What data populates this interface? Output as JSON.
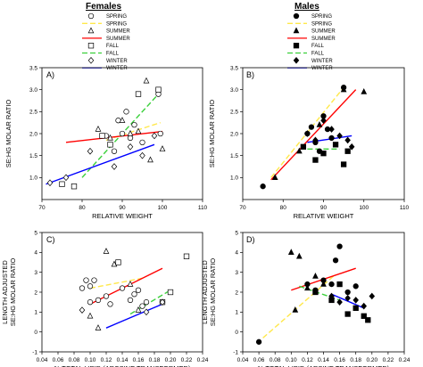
{
  "figure": {
    "females_header": "Females",
    "males_header": "Males"
  },
  "legend_entries": [
    "SPRING",
    "SPRING",
    "SUMMER",
    "SUMMER",
    "FALL",
    "FALL",
    "WINTER",
    "WINTER"
  ],
  "colors": {
    "spring_line": "#ffe84a",
    "summer_line": "#ff0000",
    "fall_line": "#3ad03a",
    "winter_line": "#0000ff",
    "marker": "#000000"
  },
  "chart_data": [
    {
      "panel_label": "A)",
      "type": "scatter",
      "xlabel": "RELATIVE WEIGHT",
      "ylabel": "SE:HG MOLAR RATIO",
      "xlim": [
        70,
        110
      ],
      "ylim": [
        0.5,
        3.5
      ],
      "xticks": [
        "70",
        "80",
        "90",
        "100",
        "110"
      ],
      "yticks": [
        "1.0",
        "1.5",
        "2.0",
        "2.5",
        "3.0",
        "3.5"
      ],
      "marker_fill": "open",
      "series": [
        {
          "name": "SPRING",
          "marker": "circle",
          "points": [
            [
              86,
              1.95
            ],
            [
              88,
              1.6
            ],
            [
              89,
              2.3
            ],
            [
              90,
              2.0
            ],
            [
              91,
              2.5
            ],
            [
              92,
              1.9
            ],
            [
              93,
              2.2
            ],
            [
              95,
              1.8
            ],
            [
              99,
              2.9
            ],
            [
              99.5,
              2.0
            ]
          ],
          "fit": [
            [
              86,
              1.85
            ],
            [
              99.5,
              2.25
            ]
          ]
        },
        {
          "name": "SUMMER",
          "marker": "triangle",
          "points": [
            [
              84,
              2.1
            ],
            [
              87,
              1.9
            ],
            [
              90,
              2.3
            ],
            [
              92,
              2.0
            ],
            [
              94,
              2.05
            ],
            [
              96,
              3.2
            ],
            [
              97,
              1.4
            ],
            [
              100,
              1.65
            ]
          ],
          "fit": [
            [
              76,
              1.8
            ],
            [
              100,
              2.05
            ]
          ]
        },
        {
          "name": "FALL",
          "marker": "square",
          "points": [
            [
              75,
              0.85
            ],
            [
              78,
              0.8
            ],
            [
              85,
              1.95
            ],
            [
              87,
              1.75
            ],
            [
              94,
              2.9
            ],
            [
              99,
              3.0
            ]
          ],
          "fit": [
            [
              80,
              1.0
            ],
            [
              99,
              2.9
            ]
          ]
        },
        {
          "name": "WINTER",
          "marker": "diamond",
          "points": [
            [
              72,
              0.88
            ],
            [
              76,
              1.0
            ],
            [
              82,
              1.6
            ],
            [
              88,
              1.25
            ],
            [
              92,
              1.7
            ],
            [
              95,
              1.5
            ],
            [
              98,
              1.95
            ]
          ],
          "fit": [
            [
              71,
              0.85
            ],
            [
              98,
              1.75
            ]
          ]
        }
      ]
    },
    {
      "panel_label": "B)",
      "type": "scatter",
      "xlabel": "RELATIVE WEIGHT",
      "ylabel": "SE:HG MOLAR RATIO",
      "xlim": [
        70,
        110
      ],
      "ylim": [
        0.5,
        3.5
      ],
      "xticks": [
        "70",
        "80",
        "90",
        "100",
        "110"
      ],
      "yticks": [
        "1.0",
        "1.5",
        "2.0",
        "2.5",
        "3.0",
        "3.5"
      ],
      "marker_fill": "filled",
      "series": [
        {
          "name": "SPRING",
          "marker": "circle",
          "points": [
            [
              75,
              0.8
            ],
            [
              86,
              2.0
            ],
            [
              87,
              2.15
            ],
            [
              88,
              1.8
            ],
            [
              89,
              1.6
            ],
            [
              90,
              2.4
            ],
            [
              91,
              2.1
            ],
            [
              92,
              1.9
            ],
            [
              95,
              3.05
            ]
          ],
          "fit": [
            [
              77,
              1.0
            ],
            [
              95,
              3.05
            ]
          ]
        },
        {
          "name": "SUMMER",
          "marker": "triangle",
          "points": [
            [
              78,
              1.0
            ],
            [
              84,
              1.6
            ],
            [
              89,
              2.2
            ],
            [
              95,
              3.0
            ],
            [
              100,
              2.95
            ]
          ],
          "fit": [
            [
              77,
              0.95
            ],
            [
              98,
              3.0
            ]
          ]
        },
        {
          "name": "FALL",
          "marker": "square",
          "points": [
            [
              85,
              1.7
            ],
            [
              88,
              1.4
            ],
            [
              90,
              1.55
            ],
            [
              93,
              1.75
            ],
            [
              95,
              1.3
            ],
            [
              96,
              1.6
            ]
          ],
          "fit": [
            [
              86,
              1.65
            ],
            [
              94,
              1.65
            ]
          ]
        },
        {
          "name": "WINTER",
          "marker": "diamond",
          "points": [
            [
              86,
              2.0
            ],
            [
              88,
              1.85
            ],
            [
              90,
              2.3
            ],
            [
              92,
              2.1
            ],
            [
              94,
              1.95
            ],
            [
              96,
              1.85
            ],
            [
              97,
              1.7
            ]
          ],
          "fit": [
            [
              86,
              1.8
            ],
            [
              97,
              1.95
            ]
          ]
        }
      ]
    },
    {
      "panel_label": "C)",
      "type": "scatter",
      "xlabel": "% TOTAL LIPID (ARCSINE TRANSFORMED)",
      "ylabel": "LENGTH ADJUSTED SE:HG MOLAR RATIO",
      "xlim": [
        0.04,
        0.24
      ],
      "ylim": [
        -1,
        5
      ],
      "xticks": [
        "0.04",
        "0.06",
        "0.08",
        "0.10",
        "0.12",
        "0.14",
        "0.16",
        "0.18",
        "0.20",
        "0.22",
        "0.24"
      ],
      "yticks": [
        "-1",
        "0",
        "1",
        "2",
        "3",
        "4",
        "5"
      ],
      "marker_fill": "open",
      "series": [
        {
          "name": "SPRING",
          "marker": "circle",
          "points": [
            [
              0.09,
              2.2
            ],
            [
              0.095,
              2.6
            ],
            [
              0.1,
              1.5
            ],
            [
              0.1,
              2.3
            ],
            [
              0.105,
              2.6
            ],
            [
              0.11,
              1.6
            ],
            [
              0.12,
              1.8
            ],
            [
              0.125,
              1.4
            ],
            [
              0.14,
              2.2
            ],
            [
              0.15,
              1.6
            ],
            [
              0.155,
              1.9
            ],
            [
              0.16,
              2.1
            ],
            [
              0.165,
              1.3
            ],
            [
              0.17,
              1.5
            ]
          ],
          "fit": [
            [
              0.1,
              2.2
            ],
            [
              0.165,
              2.7
            ]
          ]
        },
        {
          "name": "SUMMER",
          "marker": "triangle",
          "points": [
            [
              0.1,
              0.8
            ],
            [
              0.11,
              0.2
            ],
            [
              0.12,
              4.05
            ],
            [
              0.13,
              3.4
            ],
            [
              0.15,
              2.4
            ],
            [
              0.16,
              1.1
            ]
          ],
          "fit": [
            [
              0.1,
              1.4
            ],
            [
              0.19,
              3.2
            ]
          ]
        },
        {
          "name": "FALL",
          "marker": "square",
          "points": [
            [
              0.135,
              3.5
            ],
            [
              0.19,
              1.5
            ],
            [
              0.2,
              2.0
            ],
            [
              0.22,
              3.8
            ]
          ],
          "fit": [
            [
              0.15,
              0.9
            ],
            [
              0.2,
              2.1
            ]
          ]
        },
        {
          "name": "WINTER",
          "marker": "diamond",
          "points": [
            [
              0.09,
              1.1
            ],
            [
              0.17,
              1.0
            ],
            [
              0.19,
              1.5
            ]
          ],
          "fit": [
            [
              0.12,
              0.2
            ],
            [
              0.19,
              1.4
            ]
          ]
        }
      ]
    },
    {
      "panel_label": "D)",
      "type": "scatter",
      "xlabel": "% TOTAL LIPID (ARSINE TRANSFORMED)",
      "ylabel": "LENGTH ADJUSTED SE:HG MOLAR RATIO",
      "xlim": [
        0.04,
        0.24
      ],
      "ylim": [
        -1,
        5
      ],
      "xticks": [
        "0.04",
        "0.06",
        "0.08",
        "0.10",
        "0.12",
        "0.14",
        "0.16",
        "0.18",
        "0.20",
        "0.22",
        "0.24"
      ],
      "yticks": [
        "-1",
        "0",
        "1",
        "2",
        "3",
        "4",
        "5"
      ],
      "marker_fill": "filled",
      "series": [
        {
          "name": "SPRING",
          "marker": "circle",
          "points": [
            [
              0.06,
              -0.5
            ],
            [
              0.12,
              2.4
            ],
            [
              0.13,
              2.1
            ],
            [
              0.14,
              2.6
            ],
            [
              0.15,
              2.4
            ],
            [
              0.155,
              3.6
            ],
            [
              0.16,
              4.3
            ],
            [
              0.17,
              2.0
            ],
            [
              0.18,
              2.3
            ]
          ],
          "fit": [
            [
              0.065,
              -0.3
            ],
            [
              0.155,
              2.9
            ]
          ]
        },
        {
          "name": "SUMMER",
          "marker": "triangle",
          "points": [
            [
              0.1,
              4.0
            ],
            [
              0.105,
              1.1
            ],
            [
              0.11,
              3.8
            ],
            [
              0.12,
              2.2
            ],
            [
              0.13,
              2.8
            ],
            [
              0.14,
              2.4
            ]
          ],
          "fit": [
            [
              0.1,
              2.1
            ],
            [
              0.18,
              3.2
            ]
          ]
        },
        {
          "name": "FALL",
          "marker": "square",
          "points": [
            [
              0.13,
              2.0
            ],
            [
              0.15,
              1.6
            ],
            [
              0.16,
              2.4
            ],
            [
              0.17,
              0.9
            ],
            [
              0.18,
              1.2
            ],
            [
              0.19,
              0.8
            ],
            [
              0.195,
              0.6
            ]
          ],
          "fit": [
            [
              0.11,
              2.3
            ],
            [
              0.16,
              1.6
            ]
          ]
        },
        {
          "name": "WINTER",
          "marker": "diamond",
          "points": [
            [
              0.15,
              1.8
            ],
            [
              0.16,
              1.5
            ],
            [
              0.17,
              1.7
            ],
            [
              0.18,
              1.6
            ],
            [
              0.19,
              1.3
            ],
            [
              0.2,
              1.8
            ]
          ],
          "fit": [
            [
              0.15,
              1.9
            ],
            [
              0.19,
              1.2
            ]
          ]
        }
      ]
    }
  ]
}
